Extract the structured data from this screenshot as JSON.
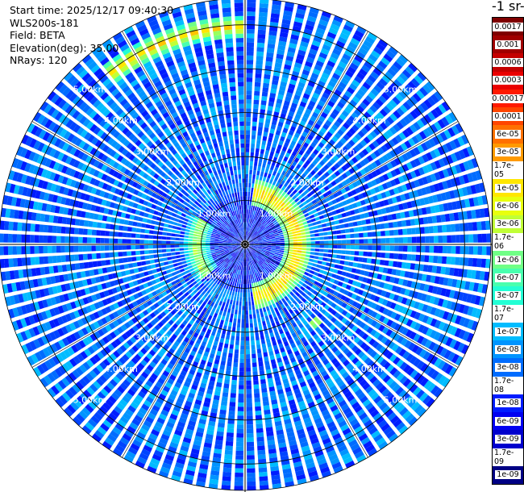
{
  "info": {
    "start_time": "Start time: 2025/12/17 09:40:30",
    "instrument": "WLS200s-181",
    "field": "Field: BETA",
    "elevation": "Elevation(deg): 35.00",
    "nrays": "NRays: 120"
  },
  "colorbar": {
    "unit_fragment": "-1 sr-",
    "labels": [
      "0.0017",
      "0.001",
      "0.0006",
      "0.0003",
      "0.00017",
      "0.0001",
      "6e-05",
      "3e-05",
      "1.7e-05",
      "1e-05",
      "6e-06",
      "3e-06",
      "1.7e-06",
      "1e-06",
      "6e-07",
      "3e-07",
      "1.7e-07",
      "1e-07",
      "6e-08",
      "3e-08",
      "1.7e-08",
      "1e-08",
      "6e-09",
      "3e-09",
      "1.7e-09",
      "1e-09"
    ],
    "colors": [
      "#7f0000",
      "#a00000",
      "#c40000",
      "#ea0000",
      "#ff1a00",
      "#ff4500",
      "#ff7000",
      "#ff9a00",
      "#ffc400",
      "#ffe600",
      "#e8ff0e",
      "#c0ff36",
      "#98ff5e",
      "#70ff86",
      "#48ffae",
      "#22ffd4",
      "#00e4f8",
      "#00bcff",
      "#0094ff",
      "#006cff",
      "#0044ff",
      "#001cff",
      "#0000f1",
      "#0000cd",
      "#0000a8",
      "#000084"
    ]
  },
  "chart_data": {
    "type": "heatmap",
    "projection": "polar PPI",
    "field": "BETA",
    "units": "-1 sr-",
    "nrays": 120,
    "elevation_deg": 35.0,
    "range_rings_km": [
      1.0,
      2.0,
      3.0,
      4.0,
      5.0
    ],
    "range_labels": [
      "1.00km",
      "2.00km",
      "3.00km",
      "4.00km",
      "5.00km"
    ],
    "max_range_km": 5.6,
    "color_scale": "log",
    "color_range": [
      1e-09,
      0.0017
    ],
    "background_level": 3e-08,
    "features": [
      {
        "name": "aerosol layer",
        "range_km": [
          0.9,
          1.5
        ],
        "azimuth_deg": [
          10,
          170
        ],
        "level": 1.7e-05
      },
      {
        "name": "aerosol layer",
        "range_km": [
          0.8,
          1.4
        ],
        "azimuth_deg": [
          230,
          300
        ],
        "level": 3e-06
      },
      {
        "name": "aerosol layer",
        "range_km": [
          0.9,
          1.5
        ],
        "azimuth_deg": [
          175,
          225
        ],
        "level": 1e-07
      },
      {
        "name": "far band",
        "range_km": [
          4.7,
          5.2
        ],
        "azimuth_deg": [
          320,
          360
        ],
        "level": 1e-05
      },
      {
        "name": "patch",
        "range_km": [
          2.3,
          2.5
        ],
        "azimuth_deg": [
          135,
          140
        ],
        "level": 1e-05
      }
    ]
  }
}
